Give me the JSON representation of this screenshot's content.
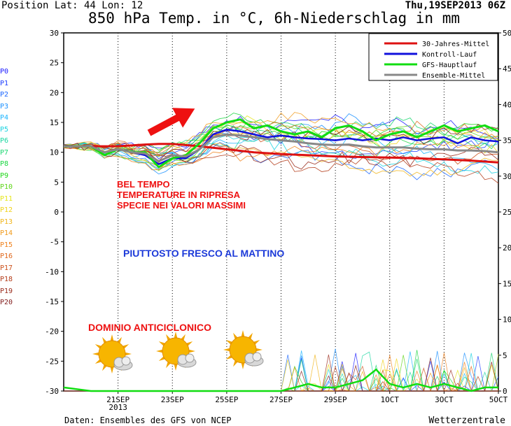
{
  "header": {
    "position": "Position  Lat: 44 Lon: 12",
    "date": "Thu,19SEP2013 06Z",
    "title": "850 hPa Temp. in °C, 6h-Niederschlag in mm"
  },
  "footer": {
    "left": "Daten: Ensembles des GFS von NCEP",
    "right": "Wetterzentrale"
  },
  "members": [
    {
      "label": "P0",
      "color": "#1a1aff"
    },
    {
      "label": "P1",
      "color": "#1a3cff"
    },
    {
      "label": "P2",
      "color": "#1a66ff"
    },
    {
      "label": "P3",
      "color": "#1a90ff"
    },
    {
      "label": "P4",
      "color": "#1ab4ff"
    },
    {
      "label": "P5",
      "color": "#1ad2e0"
    },
    {
      "label": "P6",
      "color": "#1ad6a0"
    },
    {
      "label": "P7",
      "color": "#1ad670"
    },
    {
      "label": "P8",
      "color": "#1ad640"
    },
    {
      "label": "P9",
      "color": "#20d61a"
    },
    {
      "label": "P10",
      "color": "#60d61a"
    },
    {
      "label": "P11",
      "color": "#e6e61a"
    },
    {
      "label": "P12",
      "color": "#f0d21a"
    },
    {
      "label": "P13",
      "color": "#f0b41a"
    },
    {
      "label": "P14",
      "color": "#f09a1a"
    },
    {
      "label": "P15",
      "color": "#f0801a"
    },
    {
      "label": "P16",
      "color": "#e0661a"
    },
    {
      "label": "P17",
      "color": "#cc501a"
    },
    {
      "label": "P18",
      "color": "#b43c1a"
    },
    {
      "label": "P19",
      "color": "#9a2a1a"
    },
    {
      "label": "P20",
      "color": "#801a1a"
    }
  ],
  "annotations": {
    "bel_tempo": "BEL TEMPO",
    "ripresa": "TEMPERATURE IN RIPRESA",
    "massimi": "SPECIE NEI VALORI MASSIMI",
    "fresco": "PIUTTOSTO FRESCO AL MATTINO",
    "dominio": "DOMINIO ANTICICLONICO"
  },
  "icons": [
    "sun-cloud-icon",
    "arrow-icon"
  ],
  "colors": {
    "red": "#ee1111",
    "blue": "#1c3ad9",
    "ens_mittel": "#888888",
    "gfs": "#11dd11",
    "kontroll": "#1111dd",
    "mittel30": "#dd1111"
  },
  "chart_data": {
    "type": "line",
    "left_axis": {
      "label": "°C",
      "min": -30,
      "max": 30,
      "ticks": [
        30,
        25,
        20,
        15,
        10,
        5,
        0,
        -5,
        -10,
        -15,
        -20,
        -25,
        -30
      ]
    },
    "right_axis": {
      "label": "mm",
      "min": 0,
      "max": 50,
      "ticks": [
        50,
        45,
        40,
        35,
        30,
        25,
        20,
        15,
        10,
        5,
        0
      ]
    },
    "x_ticks": [
      {
        "day": 2,
        "label": "21SEP",
        "sub": "2013"
      },
      {
        "day": 4,
        "label": "23SEP",
        "sub": ""
      },
      {
        "day": 6,
        "label": "25SEP",
        "sub": ""
      },
      {
        "day": 8,
        "label": "27SEP",
        "sub": ""
      },
      {
        "day": 10,
        "label": "29SEP",
        "sub": ""
      },
      {
        "day": 12,
        "label": "1OCT",
        "sub": ""
      },
      {
        "day": 14,
        "label": "3OCT",
        "sub": ""
      },
      {
        "day": 16,
        "label": "5OCT",
        "sub": ""
      }
    ],
    "x_range_days": [
      0,
      16
    ],
    "legend": [
      {
        "name": "30-Jahres-Mittel",
        "color": "#dd1111"
      },
      {
        "name": "Kontroll-Lauf",
        "color": "#1111dd"
      },
      {
        "name": "GFS-Hauptlauf",
        "color": "#11dd11"
      },
      {
        "name": "Ensemble-Mittel",
        "color": "#888888"
      }
    ],
    "series": [
      {
        "name": "30-Jahres-Mittel",
        "x": [
          0,
          1,
          2,
          3,
          3.5,
          4,
          5,
          6,
          7,
          8,
          9,
          10,
          11,
          12,
          13,
          14,
          15,
          16
        ],
        "values": [
          11,
          11,
          11,
          11.3,
          11.4,
          11.4,
          11,
          10.5,
          10,
          9.7,
          9.5,
          9.3,
          9.2,
          9.1,
          9,
          8.8,
          8.6,
          8.3
        ]
      },
      {
        "name": "Kontroll-Lauf",
        "x": [
          0,
          1,
          1.5,
          2,
          2.5,
          3,
          3.5,
          4,
          4.5,
          5,
          5.5,
          6,
          6.5,
          7,
          7.5,
          8,
          8.5,
          9,
          9.5,
          10,
          10.5,
          11,
          11.5,
          12,
          12.5,
          13,
          13.5,
          14,
          14.5,
          15,
          15.5,
          16
        ],
        "values": [
          11,
          11,
          10,
          10.5,
          10,
          9.5,
          8,
          9,
          9,
          10.5,
          13,
          13.8,
          13.5,
          13,
          12.5,
          12.8,
          12.5,
          12.3,
          12.2,
          12,
          12.3,
          12,
          12.3,
          12,
          12.5,
          12,
          12.3,
          12.5,
          11.5,
          12.5,
          12,
          11.8
        ]
      },
      {
        "name": "GFS-Hauptlauf",
        "x": [
          0,
          1,
          1.5,
          2,
          2.5,
          3,
          3.5,
          4,
          4.5,
          5,
          5.5,
          6,
          6.5,
          7,
          7.5,
          8,
          8.5,
          9,
          9.5,
          10,
          10.5,
          11,
          11.5,
          12,
          12.5,
          13,
          13.5,
          14,
          14.5,
          15,
          15.5,
          16
        ],
        "values": [
          11,
          11,
          9.5,
          10.5,
          10,
          10,
          7.5,
          9,
          9.5,
          11.5,
          14,
          15,
          15.5,
          14,
          14.5,
          13.5,
          13,
          13.5,
          12.5,
          14,
          14.5,
          13.5,
          12,
          13,
          13.5,
          12.5,
          13.5,
          14.5,
          13.5,
          14,
          14.5,
          13.5
        ]
      },
      {
        "name": "Ensemble-Mittel",
        "x": [
          0,
          1,
          1.5,
          2,
          2.5,
          3,
          3.5,
          4,
          4.5,
          5,
          5.5,
          6,
          6.5,
          7,
          7.5,
          8,
          8.5,
          9,
          9.5,
          10,
          10.5,
          11,
          11.5,
          12,
          12.5,
          13,
          13.5,
          14,
          14.5,
          15,
          15.5,
          16
        ],
        "values": [
          11,
          11,
          10,
          10.5,
          10,
          9.8,
          8.5,
          9.5,
          9.3,
          10.5,
          12.5,
          13,
          12.8,
          12.5,
          12.2,
          12,
          11.8,
          11.5,
          11.3,
          11.2,
          11.3,
          11,
          10.8,
          10.8,
          10.8,
          10.6,
          10.5,
          10.5,
          10.3,
          10.3,
          10.2,
          10
        ]
      }
    ],
    "precip_mm": {
      "x": [
        0,
        1,
        2,
        3,
        4,
        5,
        6,
        7,
        8,
        8.5,
        9,
        9.5,
        10,
        10.5,
        11,
        11.5,
        12,
        12.5,
        13,
        13.5,
        14,
        14.5,
        15,
        15.5,
        16
      ],
      "values": [
        0.5,
        0,
        0,
        0,
        0,
        0,
        0,
        0,
        0,
        0.5,
        1,
        0.5,
        0.5,
        1,
        1.5,
        3,
        1,
        0.5,
        1,
        0.5,
        1,
        0.5,
        0,
        0.5,
        0.5
      ]
    }
  }
}
